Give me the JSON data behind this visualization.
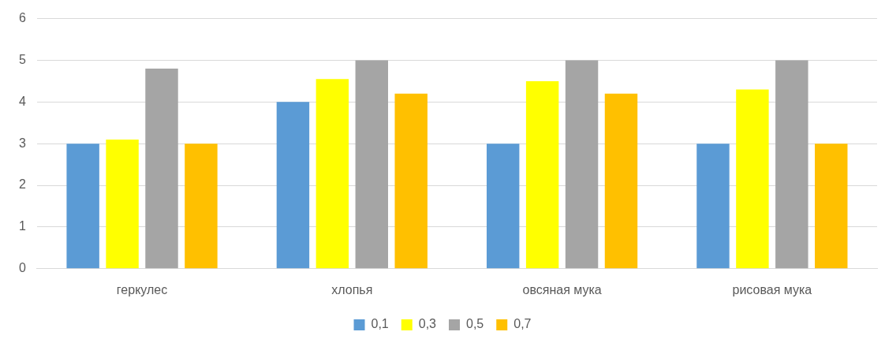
{
  "chart_data": {
    "type": "bar",
    "categories": [
      "геркулес",
      "хлопья",
      "овсяная мука",
      "рисовая мука"
    ],
    "series": [
      {
        "name": "0,1",
        "color": "#5b9bd5",
        "values": [
          3,
          4,
          3,
          3
        ]
      },
      {
        "name": "0,3",
        "color": "#ffff00",
        "values": [
          3.1,
          4.55,
          4.5,
          4.3
        ]
      },
      {
        "name": "0,5",
        "color": "#a5a5a5",
        "values": [
          4.8,
          5,
          5,
          5
        ]
      },
      {
        "name": "0,7",
        "color": "#ffc000",
        "values": [
          3,
          4.2,
          4.2,
          3
        ]
      }
    ],
    "ylim": [
      0,
      6
    ],
    "yticks": [
      0,
      1,
      2,
      3,
      4,
      5,
      6
    ],
    "grid": "y",
    "legend": "bottom"
  }
}
